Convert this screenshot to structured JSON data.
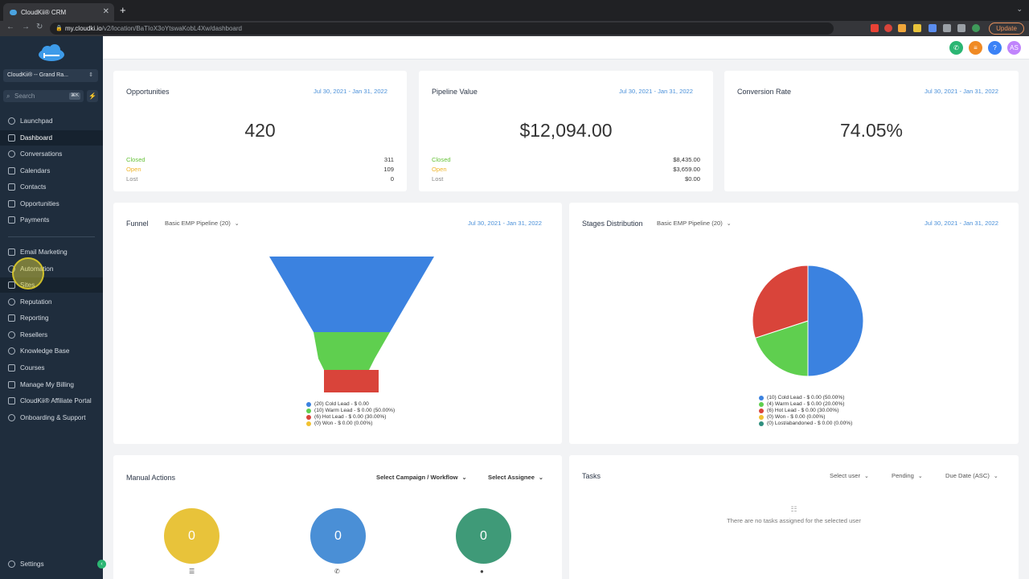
{
  "browser": {
    "tab_title": "CloudKii® CRM",
    "url_host": "my.cloudki.io",
    "url_path": "/v2/location/BaTIoX3oYtswaKobL4Xw/dashboard",
    "update_label": "Update"
  },
  "sidebar": {
    "location": "CloudKii® -- Grand Ra...",
    "search_placeholder": "Search",
    "search_shortcut": "⌘K",
    "items": [
      {
        "label": "Launchpad"
      },
      {
        "label": "Dashboard"
      },
      {
        "label": "Conversations"
      },
      {
        "label": "Calendars"
      },
      {
        "label": "Contacts"
      },
      {
        "label": "Opportunities"
      },
      {
        "label": "Payments"
      },
      {
        "label": "Email Marketing"
      },
      {
        "label": "Automation"
      },
      {
        "label": "Sites"
      },
      {
        "label": "Reputation"
      },
      {
        "label": "Reporting"
      },
      {
        "label": "Resellers"
      },
      {
        "label": "Knowledge Base"
      },
      {
        "label": "Courses"
      },
      {
        "label": "Manage My Billing"
      },
      {
        "label": "CloudKii® Affiliate Portal"
      },
      {
        "label": "Onboarding & Support"
      }
    ],
    "settings_label": "Settings"
  },
  "header": {
    "avatar_initials": "AS",
    "colors": {
      "phone": "#2bb673",
      "menu": "#f08a24",
      "help": "#3b82f6",
      "avatar": "#c084fc"
    }
  },
  "stats": {
    "date_range": "Jul 30, 2021 - Jan 31, 2022",
    "opportunities": {
      "title": "Opportunities",
      "value": "420",
      "closed_label": "Closed",
      "closed": "311",
      "open_label": "Open",
      "open": "109",
      "lost_label": "Lost",
      "lost": "0"
    },
    "pipeline": {
      "title": "Pipeline Value",
      "value": "$12,094.00",
      "closed_label": "Closed",
      "closed": "$8,435.00",
      "open_label": "Open",
      "open": "$3,659.00",
      "lost_label": "Lost",
      "lost": "$0.00"
    },
    "conversion": {
      "title": "Conversion Rate",
      "value": "74.05%"
    }
  },
  "funnel": {
    "title": "Funnel",
    "pipeline": "Basic EMP Pipeline (20)",
    "date_range": "Jul 30, 2021 - Jan 31, 2022",
    "legend": [
      {
        "text": "(20) Cold Lead - $ 0.00",
        "color": "#3b82e0"
      },
      {
        "text": "(10) Warm Lead - $ 0.00 (50.00%)",
        "color": "#5fcf4f"
      },
      {
        "text": "(6) Hot Lead - $ 0.00 (30.00%)",
        "color": "#d9443a"
      },
      {
        "text": "(0) Won - $ 0.00 (0.00%)",
        "color": "#f2c230"
      }
    ],
    "stages": [
      20,
      10,
      6,
      0
    ]
  },
  "stages_dist": {
    "title": "Stages Distribution",
    "pipeline": "Basic EMP Pipeline (20)",
    "date_range": "Jul 30, 2021 - Jan 31, 2022",
    "legend": [
      {
        "text": "(10) Cold Lead - $ 0.00 (50.00%)",
        "color": "#3b82e0"
      },
      {
        "text": "(4) Warm Lead - $ 0.00 (20.00%)",
        "color": "#5fcf4f"
      },
      {
        "text": "(6) Hot Lead - $ 0.00 (30.00%)",
        "color": "#d9443a"
      },
      {
        "text": "(0) Won - $ 0.00 (0.00%)",
        "color": "#f2c230"
      },
      {
        "text": "(0) Lost/abandoned - $ 0.00 (0.00%)",
        "color": "#2f8f7f"
      }
    ],
    "slices": [
      50,
      20,
      30,
      0,
      0
    ]
  },
  "manual_actions": {
    "title": "Manual Actions",
    "campaign_select": "Select Campaign / Workflow",
    "assignee_select": "Select Assignee",
    "counts": [
      {
        "value": "0",
        "color": "#e8c33a"
      },
      {
        "value": "0",
        "color": "#4a8fd6"
      },
      {
        "value": "0",
        "color": "#3f9a78"
      }
    ]
  },
  "tasks": {
    "title": "Tasks",
    "user_select": "Select user",
    "status_select": "Pending",
    "sort_select": "Due Date (ASC)",
    "empty_message": "There are no tasks assigned for the selected user"
  }
}
